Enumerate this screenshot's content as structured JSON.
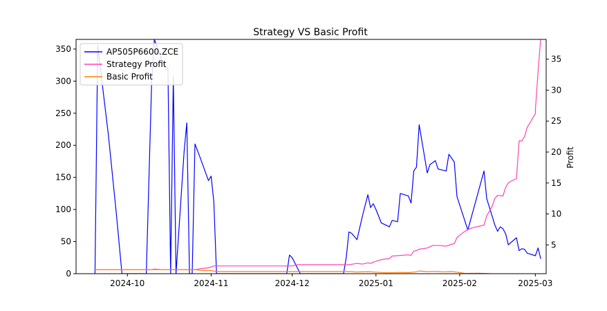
{
  "chart_data": {
    "type": "line",
    "title": "Strategy VS Basic Profit",
    "xlabel": "",
    "ylabel_left": "",
    "ylabel_right": "Profit",
    "x_ticks": [
      "2024-10",
      "2024-11",
      "2024-12",
      "2025-01",
      "2025-02",
      "2025-03"
    ],
    "x_tick_dates": [
      "2024-10-01",
      "2024-11-01",
      "2024-12-01",
      "2025-01-01",
      "2025-02-01",
      "2025-03-01"
    ],
    "xlim": [
      "2024-09-12",
      "2025-03-05"
    ],
    "y_left_ticks": [
      0,
      50,
      100,
      150,
      200,
      250,
      300,
      350
    ],
    "y_left_lim": [
      0,
      365
    ],
    "y_right_ticks": [
      5,
      10,
      15,
      20,
      25,
      30,
      35
    ],
    "y_right_lim": [
      0.35,
      38.2
    ],
    "legend_position": "top-left",
    "grid": false,
    "series": [
      {
        "name": "AP505P6600.ZCE",
        "axis": "left",
        "color": "#0000ff",
        "points": [
          [
            "2024-09-19",
            0
          ],
          [
            "2024-09-20",
            355
          ],
          [
            "2024-09-24",
            215
          ],
          [
            "2024-09-27",
            90
          ],
          [
            "2024-09-29",
            0
          ],
          [
            "2024-10-08",
            0
          ],
          [
            "2024-10-10",
            300
          ],
          [
            "2024-10-11",
            365
          ],
          [
            "2024-10-14",
            330
          ],
          [
            "2024-10-15",
            320
          ],
          [
            "2024-10-16",
            320
          ],
          [
            "2024-10-17",
            0
          ],
          [
            "2024-10-18",
            307
          ],
          [
            "2024-10-19",
            0
          ],
          [
            "2024-10-22",
            190
          ],
          [
            "2024-10-23",
            235
          ],
          [
            "2024-10-24",
            0
          ],
          [
            "2024-10-25",
            0
          ],
          [
            "2024-10-26",
            202
          ],
          [
            "2024-10-28",
            180
          ],
          [
            "2024-10-31",
            145
          ],
          [
            "2024-11-01",
            152
          ],
          [
            "2024-11-02",
            112
          ],
          [
            "2024-11-03",
            0
          ],
          [
            "2024-11-29",
            0
          ],
          [
            "2024-11-30",
            29
          ],
          [
            "2024-12-01",
            25
          ],
          [
            "2024-12-04",
            0
          ],
          [
            "2024-12-20",
            0
          ],
          [
            "2024-12-21",
            25
          ],
          [
            "2024-12-22",
            65
          ],
          [
            "2024-12-23",
            63
          ],
          [
            "2024-12-25",
            53
          ],
          [
            "2024-12-27",
            90
          ],
          [
            "2024-12-29",
            123
          ],
          [
            "2024-12-30",
            103
          ],
          [
            "2024-12-31",
            109
          ],
          [
            "2025-01-01",
            100
          ],
          [
            "2025-01-03",
            79
          ],
          [
            "2025-01-06",
            73
          ],
          [
            "2025-01-07",
            83
          ],
          [
            "2025-01-09",
            81
          ],
          [
            "2025-01-10",
            125
          ],
          [
            "2025-01-13",
            121
          ],
          [
            "2025-01-14",
            110
          ],
          [
            "2025-01-15",
            160
          ],
          [
            "2025-01-16",
            166
          ],
          [
            "2025-01-17",
            232
          ],
          [
            "2025-01-20",
            157
          ],
          [
            "2025-01-21",
            170
          ],
          [
            "2025-01-23",
            176
          ],
          [
            "2025-01-24",
            163
          ],
          [
            "2025-01-27",
            160
          ],
          [
            "2025-01-28",
            186
          ],
          [
            "2025-01-30",
            174
          ],
          [
            "2025-01-31",
            120
          ],
          [
            "2025-02-04",
            68
          ],
          [
            "2025-02-10",
            160
          ],
          [
            "2025-02-11",
            117
          ],
          [
            "2025-02-13",
            90
          ],
          [
            "2025-02-14",
            76
          ],
          [
            "2025-02-15",
            66
          ],
          [
            "2025-02-16",
            73
          ],
          [
            "2025-02-17",
            70
          ],
          [
            "2025-02-18",
            62
          ],
          [
            "2025-02-19",
            45
          ],
          [
            "2025-02-22",
            56
          ],
          [
            "2025-02-23",
            36
          ],
          [
            "2025-02-24",
            39
          ],
          [
            "2025-02-25",
            38
          ],
          [
            "2025-02-26",
            32
          ],
          [
            "2025-03-01",
            28
          ],
          [
            "2025-03-02",
            40
          ],
          [
            "2025-03-03",
            23
          ]
        ]
      },
      {
        "name": "Strategy Profit",
        "axis": "right",
        "color": "#ff41b4",
        "points": [
          [
            "2024-09-19",
            1.0
          ],
          [
            "2024-10-10",
            1.0
          ],
          [
            "2024-10-11",
            1.1
          ],
          [
            "2024-10-14",
            1.0
          ],
          [
            "2024-10-26",
            1.0
          ],
          [
            "2024-10-29",
            1.2
          ],
          [
            "2024-10-31",
            1.3
          ],
          [
            "2024-11-02",
            1.6
          ],
          [
            "2024-12-01",
            1.6
          ],
          [
            "2024-12-03",
            1.8
          ],
          [
            "2024-12-22",
            1.8
          ],
          [
            "2024-12-25",
            2.0
          ],
          [
            "2024-12-27",
            1.9
          ],
          [
            "2024-12-29",
            2.1
          ],
          [
            "2024-12-30",
            2.0
          ],
          [
            "2024-12-31",
            2.2
          ],
          [
            "2025-01-02",
            2.5
          ],
          [
            "2025-01-04",
            2.7
          ],
          [
            "2025-01-06",
            2.8
          ],
          [
            "2025-01-07",
            3.2
          ],
          [
            "2025-01-10",
            3.3
          ],
          [
            "2025-01-13",
            3.4
          ],
          [
            "2025-01-14",
            3.3
          ],
          [
            "2025-01-15",
            4.0
          ],
          [
            "2025-01-16",
            4.1
          ],
          [
            "2025-01-17",
            4.3
          ],
          [
            "2025-01-20",
            4.5
          ],
          [
            "2025-01-22",
            4.9
          ],
          [
            "2025-01-24",
            4.9
          ],
          [
            "2025-01-27",
            4.8
          ],
          [
            "2025-01-29",
            5.1
          ],
          [
            "2025-01-30",
            5.2
          ],
          [
            "2025-01-31",
            6.2
          ],
          [
            "2025-02-02",
            6.9
          ],
          [
            "2025-02-04",
            7.5
          ],
          [
            "2025-02-06",
            7.8
          ],
          [
            "2025-02-08",
            8.0
          ],
          [
            "2025-02-10",
            8.2
          ],
          [
            "2025-02-11",
            9.7
          ],
          [
            "2025-02-13",
            11.2
          ],
          [
            "2025-02-14",
            12.5
          ],
          [
            "2025-02-15",
            13.0
          ],
          [
            "2025-02-17",
            12.9
          ],
          [
            "2025-02-18",
            14.3
          ],
          [
            "2025-02-19",
            15.0
          ],
          [
            "2025-02-20",
            15.3
          ],
          [
            "2025-02-22",
            15.7
          ],
          [
            "2025-02-23",
            21.8
          ],
          [
            "2025-02-24",
            21.8
          ],
          [
            "2025-02-25",
            22.5
          ],
          [
            "2025-02-26",
            24.0
          ],
          [
            "2025-02-27",
            24.7
          ],
          [
            "2025-02-28",
            25.5
          ],
          [
            "2025-03-01",
            26.2
          ],
          [
            "2025-03-01",
            26.8
          ],
          [
            "2025-03-02",
            33.0
          ],
          [
            "2025-03-03",
            38.5
          ]
        ]
      },
      {
        "name": "Basic Profit",
        "axis": "right",
        "color": "#ff7f0e",
        "points": [
          [
            "2024-09-19",
            1.0
          ],
          [
            "2024-10-26",
            1.0
          ],
          [
            "2024-10-29",
            0.85
          ],
          [
            "2024-11-01",
            0.85
          ],
          [
            "2024-11-03",
            0.7
          ],
          [
            "2024-12-22",
            0.7
          ],
          [
            "2024-12-25",
            0.62
          ],
          [
            "2024-12-29",
            0.68
          ],
          [
            "2025-01-01",
            0.6
          ],
          [
            "2025-01-05",
            0.5
          ],
          [
            "2025-01-10",
            0.55
          ],
          [
            "2025-01-13",
            0.52
          ],
          [
            "2025-01-16",
            0.65
          ],
          [
            "2025-01-17",
            0.78
          ],
          [
            "2025-01-20",
            0.68
          ],
          [
            "2025-01-23",
            0.72
          ],
          [
            "2025-01-26",
            0.65
          ],
          [
            "2025-01-29",
            0.7
          ],
          [
            "2025-01-31",
            0.6
          ],
          [
            "2025-02-03",
            0.4
          ],
          [
            "2025-02-08",
            0.42
          ],
          [
            "2025-02-11",
            0.38
          ],
          [
            "2025-02-14",
            0.3
          ],
          [
            "2025-02-18",
            0.28
          ],
          [
            "2025-02-22",
            0.25
          ],
          [
            "2025-03-03",
            0.22
          ]
        ]
      }
    ]
  }
}
